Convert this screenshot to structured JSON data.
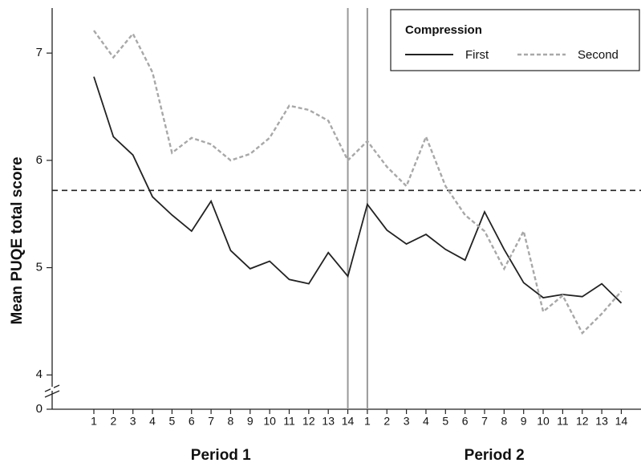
{
  "chart_data": {
    "type": "line",
    "y_label": "Mean PUQE total score",
    "categories": [
      "1",
      "2",
      "3",
      "4",
      "5",
      "6",
      "7",
      "8",
      "9",
      "10",
      "11",
      "12",
      "13",
      "14",
      "1",
      "2",
      "3",
      "4",
      "5",
      "6",
      "7",
      "8",
      "9",
      "10",
      "11",
      "12",
      "13",
      "14"
    ],
    "groups": [
      "Period 1",
      "Period 2"
    ],
    "series": [
      {
        "name": "First",
        "color": "#222222",
        "dash": false,
        "values": [
          6.78,
          6.22,
          6.05,
          5.66,
          5.49,
          5.34,
          5.62,
          5.16,
          4.99,
          5.06,
          4.89,
          4.85,
          5.14,
          4.92,
          5.59,
          5.35,
          5.22,
          5.31,
          5.17,
          5.07,
          5.52,
          5.17,
          4.86,
          4.72,
          4.75,
          4.73,
          4.85,
          4.67
        ]
      },
      {
        "name": "Second",
        "color": "#a8a8a8",
        "dash": true,
        "values": [
          7.21,
          6.96,
          7.18,
          6.82,
          6.07,
          6.21,
          6.15,
          6.0,
          6.06,
          6.21,
          6.51,
          6.47,
          6.37,
          6.0,
          6.18,
          5.94,
          5.76,
          6.22,
          5.76,
          5.49,
          5.34,
          4.99,
          5.34,
          4.59,
          4.74,
          4.39,
          4.57,
          4.78
        ]
      }
    ],
    "reference_line": 5.72,
    "legend_title": "Compression",
    "legend": "upper right",
    "ylim": [
      0,
      7.42
    ],
    "axis_break": 3.8,
    "yticks": [
      0,
      4,
      5,
      6,
      7
    ]
  }
}
